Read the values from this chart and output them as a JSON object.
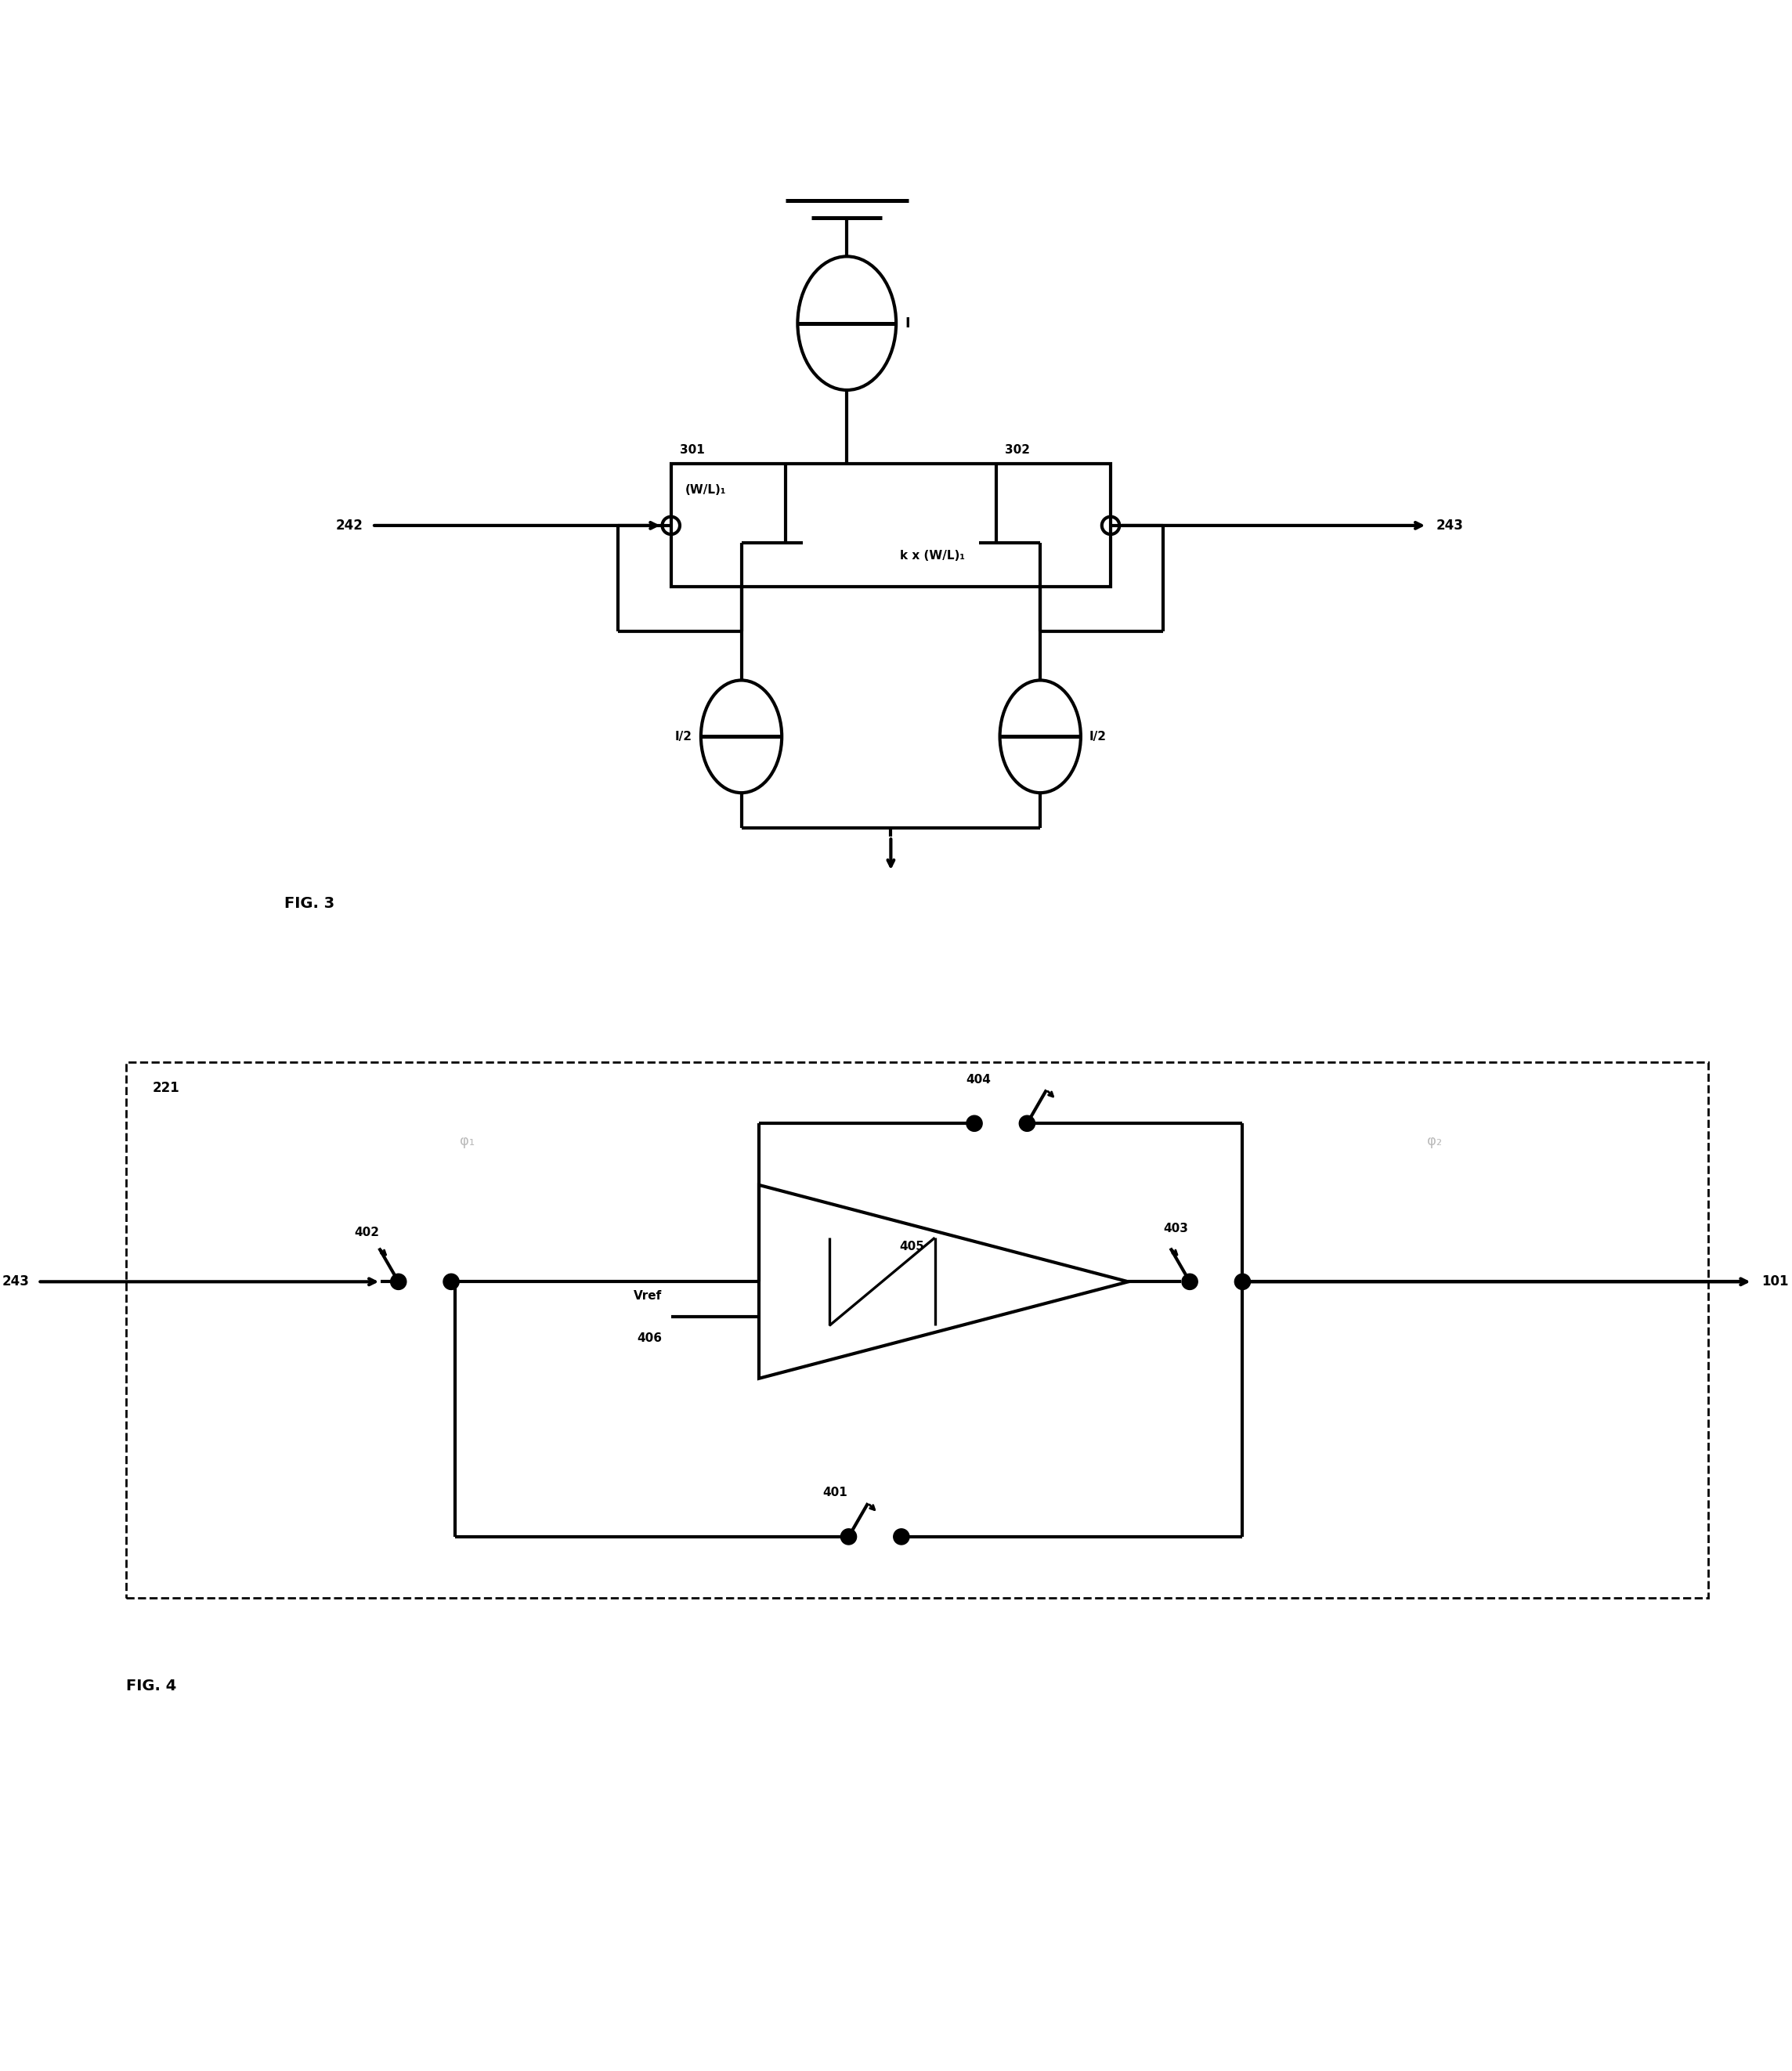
{
  "fig_width": 22.88,
  "fig_height": 26.44,
  "bg_color": "#ffffff",
  "line_color": "#000000",
  "line_width": 3.0,
  "fig3_label": "FIG. 3",
  "fig4_label": "FIG. 4",
  "labels": {
    "I_top": "I",
    "n301": "301",
    "n302": "302",
    "n242": "242",
    "n243_top": "243",
    "wl1": "(W/L)₁",
    "kwl1": "k x (W/L)₁",
    "I2_left": "I/2",
    "I2_right": "I/2",
    "n221": "221",
    "n243_bot": "243",
    "n404": "404",
    "n402": "402",
    "n403": "403",
    "n405": "405",
    "n401": "401",
    "n101": "101",
    "vref": "Vref",
    "n406": "406",
    "phi1": "φ₁",
    "phi2": "φ₂"
  }
}
